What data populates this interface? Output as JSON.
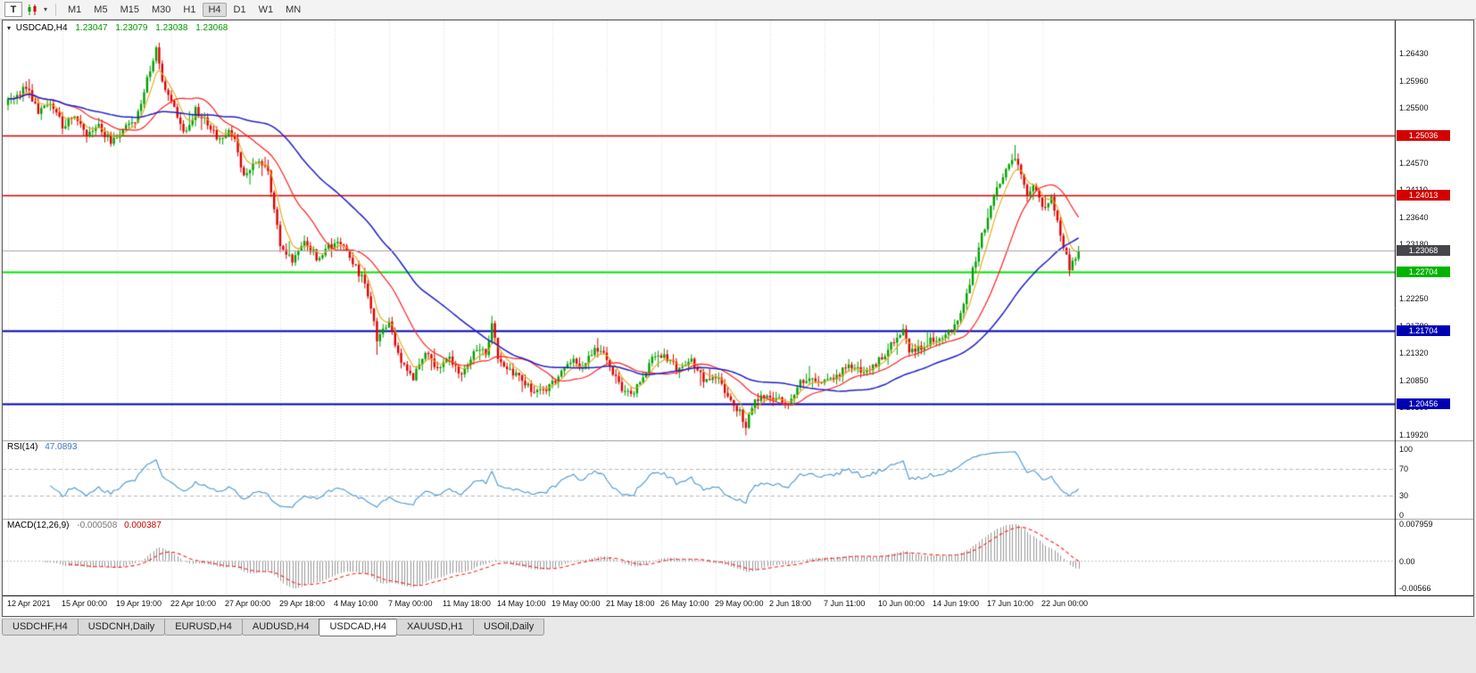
{
  "toolbar": {
    "text_tool_label": "T",
    "timeframes": [
      "M1",
      "M5",
      "M15",
      "M30",
      "H1",
      "H4",
      "D1",
      "W1",
      "MN"
    ],
    "active_timeframe": "H4"
  },
  "chart": {
    "symbol_title": "USDCAD,H4",
    "ohlc": {
      "open": "1.23047",
      "high": "1.23079",
      "low": "1.23038",
      "close": "1.23068"
    },
    "current_price": {
      "price": 1.23068,
      "label": "1.23068",
      "badge_color": "#45454c"
    },
    "price_axis_ticks": [
      "1.26430",
      "1.25960",
      "1.25500",
      "1.25040",
      "1.24570",
      "1.24110",
      "1.23640",
      "1.23180",
      "1.22710",
      "1.22250",
      "1.21780",
      "1.21320",
      "1.20850",
      "1.20390",
      "1.19920"
    ],
    "levels": [
      {
        "price": 1.25036,
        "label": "1.25036",
        "color": "#d40000",
        "line_color": "#d40000",
        "width": 1.6
      },
      {
        "price": 1.24013,
        "label": "1.24013",
        "color": "#d40000",
        "line_color": "#d40000",
        "width": 1.6
      },
      {
        "price": 1.22704,
        "label": "1.22704",
        "color": "#00b400",
        "line_color": "#00e400",
        "width": 2
      },
      {
        "price": 1.21704,
        "label": "1.21704",
        "color": "#0000b4",
        "line_color": "#0000b4",
        "width": 2
      },
      {
        "price": 1.20456,
        "label": "1.20456",
        "color": "#0000b4",
        "line_color": "#0000b4",
        "width": 2
      }
    ],
    "time_axis_labels": [
      "12 Apr 2021",
      "15 Apr 00:00",
      "19 Apr 19:00",
      "22 Apr 10:00",
      "27 Apr 00:00",
      "29 Apr 18:00",
      "4 May 10:00",
      "7 May 00:00",
      "11 May 18:00",
      "14 May 10:00",
      "19 May 00:00",
      "21 May 18:00",
      "26 May 10:00",
      "29 May 00:00",
      "2 Jun 18:00",
      "7 Jun 11:00",
      "10 Jun 00:00",
      "14 Jun 19:00",
      "17 Jun 10:00",
      "22 Jun 00:00"
    ]
  },
  "rsi": {
    "label": "RSI(14)",
    "value": "47.0893",
    "axis_ticks": [
      "100",
      "70",
      "30",
      "0"
    ],
    "guide_levels": [
      70,
      30
    ]
  },
  "macd": {
    "label": "MACD(12,26,9)",
    "main_value": "-0.000508",
    "signal_value": "0.000387",
    "axis_ticks": [
      "0.007959",
      "0.00",
      "-0.00566"
    ]
  },
  "tabs": {
    "items": [
      "USDCHF,H4",
      "USDCNH,Daily",
      "EURUSD,H4",
      "AUDUSD,H4",
      "USDCAD,H4",
      "XAUUSD,H1",
      "USOil,Daily"
    ],
    "active": "USDCAD,H4"
  },
  "chart_data": {
    "type": "candlestick",
    "symbol": "USDCAD",
    "timeframe": "H4",
    "bar_count": 355,
    "price_range": {
      "max": 1.2695,
      "min": 1.1985
    },
    "candle_colors": {
      "bull": "#00a000",
      "bear": "#e00000"
    },
    "moving_averages": [
      {
        "type": "ema",
        "period": 6,
        "color": "#e6a817"
      },
      {
        "type": "sma",
        "period": 20,
        "color": "#ff2020"
      },
      {
        "type": "sma",
        "period": 48,
        "color": "#2020c8"
      }
    ],
    "indicators": {
      "rsi_period": 14,
      "macd": [
        12,
        26,
        9
      ]
    },
    "indicator_colors": {
      "rsi": "#4a97d2",
      "macd_hist": "#999999",
      "macd_signal": "#ff2020"
    },
    "anchors": [
      [
        0,
        1.256
      ],
      [
        6,
        1.2585
      ],
      [
        10,
        1.2545
      ],
      [
        14,
        1.2562
      ],
      [
        18,
        1.252
      ],
      [
        22,
        1.2538
      ],
      [
        26,
        1.2502
      ],
      [
        30,
        1.2522
      ],
      [
        34,
        1.2492
      ],
      [
        38,
        1.2512
      ],
      [
        42,
        1.2525
      ],
      [
        46,
        1.2601
      ],
      [
        49,
        1.2648
      ],
      [
        51,
        1.2592
      ],
      [
        54,
        1.2562
      ],
      [
        58,
        1.2506
      ],
      [
        62,
        1.2546
      ],
      [
        66,
        1.2522
      ],
      [
        70,
        1.2496
      ],
      [
        74,
        1.2511
      ],
      [
        78,
        1.2432
      ],
      [
        82,
        1.2457
      ],
      [
        86,
        1.2442
      ],
      [
        90,
        1.2312
      ],
      [
        94,
        1.2291
      ],
      [
        98,
        1.2322
      ],
      [
        102,
        1.2297
      ],
      [
        106,
        1.2312
      ],
      [
        110,
        1.2322
      ],
      [
        114,
        1.2287
      ],
      [
        118,
        1.2252
      ],
      [
        122,
        1.2157
      ],
      [
        126,
        1.2187
      ],
      [
        130,
        1.2112
      ],
      [
        134,
        1.2092
      ],
      [
        138,
        1.2132
      ],
      [
        142,
        1.2107
      ],
      [
        146,
        1.2127
      ],
      [
        150,
        1.2092
      ],
      [
        154,
        1.2137
      ],
      [
        158,
        1.2132
      ],
      [
        160,
        1.2182
      ],
      [
        162,
        1.2122
      ],
      [
        166,
        1.2102
      ],
      [
        170,
        1.2087
      ],
      [
        174,
        1.2062
      ],
      [
        178,
        1.2067
      ],
      [
        182,
        1.2092
      ],
      [
        186,
        1.2122
      ],
      [
        190,
        1.2107
      ],
      [
        194,
        1.2142
      ],
      [
        198,
        1.2122
      ],
      [
        202,
        1.2077
      ],
      [
        206,
        1.2062
      ],
      [
        210,
        1.2092
      ],
      [
        214,
        1.2132
      ],
      [
        218,
        1.2122
      ],
      [
        222,
        1.2102
      ],
      [
        226,
        1.2122
      ],
      [
        230,
        1.2087
      ],
      [
        234,
        1.2092
      ],
      [
        238,
        1.2062
      ],
      [
        242,
        1.2032
      ],
      [
        244,
        1.2002
      ],
      [
        246,
        1.2042
      ],
      [
        250,
        1.2062
      ],
      [
        254,
        1.2052
      ],
      [
        258,
        1.2047
      ],
      [
        262,
        1.2082
      ],
      [
        266,
        1.2092
      ],
      [
        270,
        1.2082
      ],
      [
        274,
        1.2092
      ],
      [
        278,
        1.2112
      ],
      [
        282,
        1.2102
      ],
      [
        286,
        1.2107
      ],
      [
        290,
        1.2132
      ],
      [
        294,
        1.2162
      ],
      [
        296,
        1.2172
      ],
      [
        298,
        1.2132
      ],
      [
        302,
        1.2142
      ],
      [
        306,
        1.2157
      ],
      [
        310,
        1.2162
      ],
      [
        314,
        1.2192
      ],
      [
        318,
        1.2252
      ],
      [
        322,
        1.2332
      ],
      [
        326,
        1.2402
      ],
      [
        330,
        1.2442
      ],
      [
        333,
        1.2468
      ],
      [
        335,
        1.2432
      ],
      [
        337,
        1.2402
      ],
      [
        339,
        1.2422
      ],
      [
        341,
        1.2392
      ],
      [
        343,
        1.2382
      ],
      [
        345,
        1.2396
      ],
      [
        347,
        1.2362
      ],
      [
        349,
        1.2312
      ],
      [
        351,
        1.2278
      ],
      [
        353,
        1.2298
      ],
      [
        354,
        1.23068
      ]
    ],
    "spikes": {
      "49": {
        "h": 1.2654
      },
      "160": {
        "h": 1.2196
      },
      "244": {
        "l": 1.1992
      },
      "333": {
        "h": 1.2487
      },
      "351": {
        "l": 1.227
      }
    }
  }
}
